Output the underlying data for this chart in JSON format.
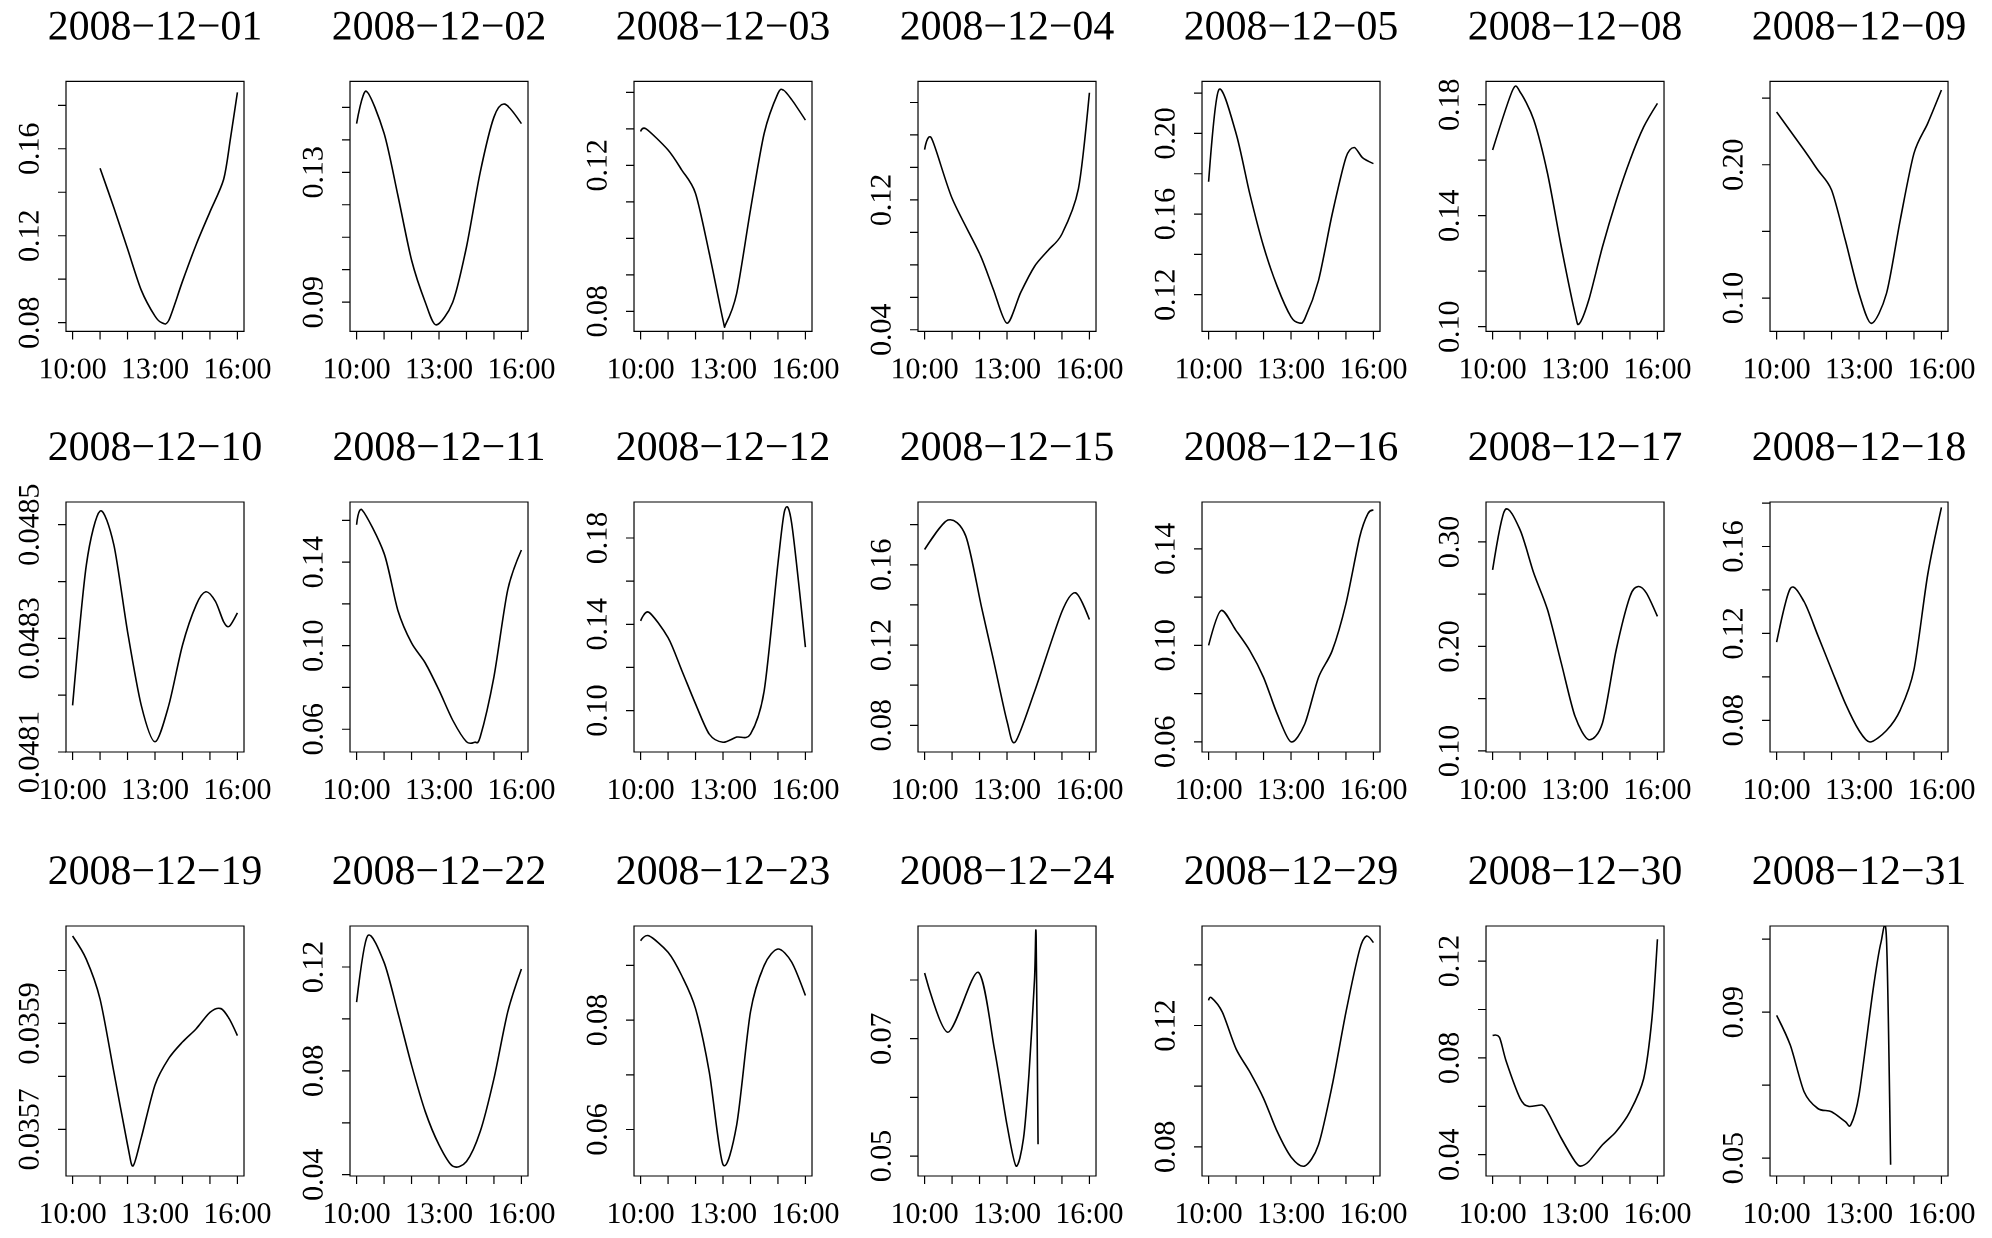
{
  "chart_data": [
    {
      "type": "line",
      "title": "2008−12−01",
      "xlim": [
        9.76,
        16.24
      ],
      "ylim": [
        0.076,
        0.191
      ],
      "xticks": [
        {
          "value": 10,
          "label": "10:00"
        },
        {
          "value": 11,
          "label": null
        },
        {
          "value": 12,
          "label": null
        },
        {
          "value": 13,
          "label": "13:00"
        },
        {
          "value": 14,
          "label": null
        },
        {
          "value": 15,
          "label": null
        },
        {
          "value": 16,
          "label": "16:00"
        }
      ],
      "yticks": [
        0.08,
        {
          "value": 0.1,
          "label": null
        },
        0.12,
        {
          "value": 0.14,
          "label": null
        },
        0.16,
        {
          "value": 0.18,
          "label": null
        }
      ],
      "x": [
        11,
        11.5,
        12,
        12.5,
        13,
        13.25,
        13.5,
        14,
        14.5,
        15,
        15.5,
        15.75,
        16
      ],
      "values": [
        0.151,
        0.133,
        0.114,
        0.095,
        0.083,
        0.08,
        0.081,
        0.099,
        0.116,
        0.131,
        0.146,
        0.165,
        0.186
      ]
    },
    {
      "type": "line",
      "title": "2008−12−02",
      "xlim": [
        9.76,
        16.24
      ],
      "ylim": [
        0.081,
        0.158
      ],
      "xticks": [
        {
          "value": 10,
          "label": "10:00"
        },
        {
          "value": 11,
          "label": null
        },
        {
          "value": 12,
          "label": null
        },
        {
          "value": 13,
          "label": "13:00"
        },
        {
          "value": 14,
          "label": null
        },
        {
          "value": 15,
          "label": null
        },
        {
          "value": 16,
          "label": "16:00"
        }
      ],
      "yticks": [
        0.09,
        {
          "value": 0.1,
          "label": null
        },
        {
          "value": 0.11,
          "label": null
        },
        {
          "value": 0.12,
          "label": null
        },
        0.13,
        {
          "value": 0.14,
          "label": null
        },
        {
          "value": 0.15,
          "label": null
        }
      ],
      "x": [
        10,
        10.35,
        11,
        11.5,
        12,
        12.5,
        12.9,
        13.5,
        14,
        14.5,
        15,
        15.4,
        16
      ],
      "values": [
        0.145,
        0.155,
        0.142,
        0.123,
        0.103,
        0.09,
        0.083,
        0.09,
        0.107,
        0.13,
        0.147,
        0.151,
        0.145
      ]
    },
    {
      "type": "line",
      "title": "2008−12−03",
      "xlim": [
        9.76,
        16.24
      ],
      "ylim": [
        0.0745,
        0.143
      ],
      "xticks": [
        {
          "value": 10,
          "label": "10:00"
        },
        {
          "value": 11,
          "label": null
        },
        {
          "value": 12,
          "label": null
        },
        {
          "value": 13,
          "label": "13:00"
        },
        {
          "value": 14,
          "label": null
        },
        {
          "value": 15,
          "label": null
        },
        {
          "value": 16,
          "label": "16:00"
        }
      ],
      "yticks": [
        0.08,
        {
          "value": 0.09,
          "label": null
        },
        {
          "value": 0.1,
          "label": null
        },
        {
          "value": 0.11,
          "label": null
        },
        0.12,
        {
          "value": 0.13,
          "label": null
        },
        {
          "value": 0.14,
          "label": null
        }
      ],
      "x": [
        10,
        10.2,
        11,
        11.5,
        12,
        12.5,
        13,
        13.1,
        13.5,
        14,
        14.5,
        15,
        15.2,
        15.5,
        16
      ],
      "values": [
        0.1293,
        0.13,
        0.1242,
        0.1187,
        0.1123,
        0.0959,
        0.0776,
        0.0765,
        0.085,
        0.1078,
        0.1288,
        0.1397,
        0.1406,
        0.138,
        0.1324
      ]
    },
    {
      "type": "line",
      "title": "2008−12−04",
      "xlim": [
        9.76,
        16.24
      ],
      "ylim": [
        0.039,
        0.193
      ],
      "xticks": [
        {
          "value": 10,
          "label": "10:00"
        },
        {
          "value": 11,
          "label": null
        },
        {
          "value": 12,
          "label": null
        },
        {
          "value": 13,
          "label": "13:00"
        },
        {
          "value": 14,
          "label": null
        },
        {
          "value": 15,
          "label": null
        },
        {
          "value": 16,
          "label": "16:00"
        }
      ],
      "yticks": [
        0.04,
        {
          "value": 0.06,
          "label": null
        },
        {
          "value": 0.08,
          "label": null
        },
        {
          "value": 0.1,
          "label": null
        },
        0.12,
        {
          "value": 0.14,
          "label": null
        },
        {
          "value": 0.16,
          "label": null
        },
        {
          "value": 0.18,
          "label": null
        }
      ],
      "x": [
        10,
        10.25,
        11,
        12,
        12.5,
        13,
        13.5,
        14,
        14.5,
        15,
        15.6,
        16
      ],
      "values": [
        0.151,
        0.158,
        0.121,
        0.087,
        0.065,
        0.044,
        0.063,
        0.079,
        0.089,
        0.099,
        0.127,
        0.186
      ]
    },
    {
      "type": "line",
      "title": "2008−12−05",
      "xlim": [
        9.76,
        16.24
      ],
      "ylim": [
        0.1018,
        0.2258
      ],
      "xticks": [
        {
          "value": 10,
          "label": "10:00"
        },
        {
          "value": 11,
          "label": null
        },
        {
          "value": 12,
          "label": null
        },
        {
          "value": 13,
          "label": "13:00"
        },
        {
          "value": 14,
          "label": null
        },
        {
          "value": 15,
          "label": null
        },
        {
          "value": 16,
          "label": "16:00"
        }
      ],
      "yticks": [
        0.12,
        {
          "value": 0.14,
          "label": null
        },
        0.16,
        {
          "value": 0.18,
          "label": null
        },
        {
          "value": 0.2,
          "label": "0.20"
        },
        {
          "value": 0.22,
          "label": null
        }
      ],
      "x": [
        10,
        10.37,
        11,
        11.5,
        12,
        12.5,
        13,
        13.3,
        13.5,
        14,
        14.5,
        15,
        15.3,
        15.6,
        16
      ],
      "values": [
        0.176,
        0.2216,
        0.2,
        0.17,
        0.144,
        0.124,
        0.109,
        0.106,
        0.108,
        0.127,
        0.16,
        0.188,
        0.193,
        0.188,
        0.185
      ]
    },
    {
      "type": "line",
      "title": "2008−12−08",
      "xlim": [
        9.76,
        16.24
      ],
      "ylim": [
        0.0983,
        0.1884
      ],
      "xticks": [
        {
          "value": 10,
          "label": "10:00"
        },
        {
          "value": 11,
          "label": null
        },
        {
          "value": 12,
          "label": null
        },
        {
          "value": 13,
          "label": "13:00"
        },
        {
          "value": 14,
          "label": null
        },
        {
          "value": 15,
          "label": null
        },
        {
          "value": 16,
          "label": "16:00"
        }
      ],
      "yticks": [
        {
          "value": 0.1,
          "label": "0.10"
        },
        {
          "value": 0.12,
          "label": null
        },
        0.14,
        {
          "value": 0.16,
          "label": null
        },
        0.18
      ],
      "x": [
        10,
        10.73,
        11,
        11.5,
        12,
        12.5,
        13,
        13.15,
        13.5,
        14,
        14.5,
        15,
        15.5,
        16
      ],
      "values": [
        0.1637,
        0.1853,
        0.1846,
        0.1745,
        0.1552,
        0.1288,
        0.1048,
        0.101,
        0.1096,
        0.1288,
        0.1455,
        0.16,
        0.172,
        0.1805
      ]
    },
    {
      "type": "line",
      "title": "2008−12−09",
      "xlim": [
        9.76,
        16.24
      ],
      "ylim": [
        0.075,
        0.2625
      ],
      "xticks": [
        {
          "value": 10,
          "label": "10:00"
        },
        {
          "value": 11,
          "label": null
        },
        {
          "value": 12,
          "label": null
        },
        {
          "value": 13,
          "label": "13:00"
        },
        {
          "value": 14,
          "label": null
        },
        {
          "value": 15,
          "label": null
        },
        {
          "value": 16,
          "label": "16:00"
        }
      ],
      "yticks": [
        {
          "value": 0.1,
          "label": "0.10"
        },
        {
          "value": 0.15,
          "label": null
        },
        {
          "value": 0.2,
          "label": "0.20"
        },
        {
          "value": 0.25,
          "label": null
        }
      ],
      "x": [
        10,
        11,
        11.5,
        12,
        12.5,
        13,
        13.45,
        14,
        14.5,
        15,
        15.5,
        16
      ],
      "values": [
        0.2395,
        0.211,
        0.196,
        0.181,
        0.1435,
        0.1035,
        0.081,
        0.1035,
        0.1585,
        0.2085,
        0.231,
        0.256
      ]
    },
    {
      "type": "line",
      "title": "2008−12−10",
      "xlim": [
        9.76,
        16.24
      ],
      "ylim": [
        0.0481,
        0.04854
      ],
      "xticks": [
        {
          "value": 10,
          "label": "10:00"
        },
        {
          "value": 11,
          "label": null
        },
        {
          "value": 12,
          "label": null
        },
        {
          "value": 13,
          "label": "13:00"
        },
        {
          "value": 14,
          "label": null
        },
        {
          "value": 15,
          "label": null
        },
        {
          "value": 16,
          "label": "16:00"
        }
      ],
      "yticks": [
        0.0481,
        {
          "value": 0.0482,
          "label": null
        },
        0.0483,
        {
          "value": 0.0484,
          "label": null
        },
        0.0485
      ],
      "x": [
        10,
        10.5,
        11,
        11.5,
        12,
        12.5,
        13,
        13.5,
        14,
        14.5,
        14.85,
        15.2,
        15.5,
        15.7,
        16
      ],
      "values": [
        0.048182,
        0.048429,
        0.048524,
        0.048465,
        0.048312,
        0.048182,
        0.048118,
        0.048182,
        0.048288,
        0.048359,
        0.048382,
        0.048365,
        0.048329,
        0.048321,
        0.048345
      ]
    },
    {
      "type": "line",
      "title": "2008−12−11",
      "xlim": [
        9.76,
        16.24
      ],
      "ylim": [
        0.0491,
        0.1688
      ],
      "xticks": [
        {
          "value": 10,
          "label": "10:00"
        },
        {
          "value": 11,
          "label": null
        },
        {
          "value": 12,
          "label": null
        },
        {
          "value": 13,
          "label": "13:00"
        },
        {
          "value": 14,
          "label": null
        },
        {
          "value": 15,
          "label": null
        },
        {
          "value": 16,
          "label": "16:00"
        }
      ],
      "yticks": [
        0.06,
        {
          "value": 0.08,
          "label": null
        },
        {
          "value": 0.1,
          "label": "0.10"
        },
        {
          "value": 0.12,
          "label": null
        },
        0.14,
        {
          "value": 0.16,
          "label": null
        }
      ],
      "x": [
        10,
        10.2,
        11,
        11.5,
        12,
        12.5,
        13,
        13.5,
        14,
        14.3,
        14.5,
        15,
        15.5,
        16
      ],
      "values": [
        0.1579,
        0.165,
        0.1442,
        0.117,
        0.1013,
        0.0917,
        0.0787,
        0.0643,
        0.054,
        0.0538,
        0.0563,
        0.0851,
        0.1266,
        0.1458
      ]
    },
    {
      "type": "line",
      "title": "2008−12−12",
      "xlim": [
        9.76,
        16.24
      ],
      "ylim": [
        0.0808,
        0.1967
      ],
      "xticks": [
        {
          "value": 10,
          "label": "10:00"
        },
        {
          "value": 11,
          "label": null
        },
        {
          "value": 12,
          "label": null
        },
        {
          "value": 13,
          "label": "13:00"
        },
        {
          "value": 14,
          "label": null
        },
        {
          "value": 15,
          "label": null
        },
        {
          "value": 16,
          "label": "16:00"
        }
      ],
      "yticks": [
        {
          "value": 0.1,
          "label": "0.10"
        },
        {
          "value": 0.12,
          "label": null
        },
        0.14,
        {
          "value": 0.16,
          "label": null
        },
        0.18
      ],
      "x": [
        10,
        10.3,
        11,
        11.5,
        12,
        12.5,
        13,
        13.5,
        14,
        14.5,
        15,
        15.25,
        15.5,
        16
      ],
      "values": [
        0.1416,
        0.1456,
        0.1338,
        0.1186,
        0.1031,
        0.0891,
        0.0853,
        0.0877,
        0.0891,
        0.1093,
        0.1682,
        0.193,
        0.1868,
        0.1294
      ]
    },
    {
      "type": "line",
      "title": "2008−12−15",
      "xlim": [
        9.76,
        16.24
      ],
      "ylim": [
        0.0667,
        0.1913
      ],
      "xticks": [
        {
          "value": 10,
          "label": "10:00"
        },
        {
          "value": 11,
          "label": null
        },
        {
          "value": 12,
          "label": null
        },
        {
          "value": 13,
          "label": "13:00"
        },
        {
          "value": 14,
          "label": null
        },
        {
          "value": 15,
          "label": null
        },
        {
          "value": 16,
          "label": "16:00"
        }
      ],
      "yticks": [
        0.08,
        {
          "value": 0.1,
          "label": null
        },
        0.12,
        {
          "value": 0.14,
          "label": null
        },
        0.16,
        {
          "value": 0.18,
          "label": null
        }
      ],
      "x": [
        10,
        10.85,
        11.5,
        12.07,
        12.5,
        13,
        13.3,
        14,
        15,
        15.5,
        16
      ],
      "values": [
        0.1676,
        0.1823,
        0.1743,
        0.139,
        0.113,
        0.082,
        0.0717,
        0.0967,
        0.1367,
        0.146,
        0.1327
      ]
    },
    {
      "type": "line",
      "title": "2008−12−16",
      "xlim": [
        9.76,
        16.24
      ],
      "ylim": [
        0.0558,
        0.1594
      ],
      "xticks": [
        {
          "value": 10,
          "label": "10:00"
        },
        {
          "value": 11,
          "label": null
        },
        {
          "value": 12,
          "label": null
        },
        {
          "value": 13,
          "label": "13:00"
        },
        {
          "value": 14,
          "label": null
        },
        {
          "value": 15,
          "label": null
        },
        {
          "value": 16,
          "label": "16:00"
        }
      ],
      "yticks": [
        0.06,
        {
          "value": 0.08,
          "label": null
        },
        {
          "value": 0.1,
          "label": "0.10"
        },
        {
          "value": 0.12,
          "label": null
        },
        0.14
      ],
      "x": [
        10,
        10.45,
        11,
        11.5,
        12,
        12.5,
        13,
        13.5,
        14,
        14.5,
        15,
        15.5,
        15.8,
        16
      ],
      "values": [
        0.1,
        0.1144,
        0.1061,
        0.0978,
        0.0867,
        0.0715,
        0.06,
        0.0674,
        0.0867,
        0.0978,
        0.1173,
        0.1449,
        0.1546,
        0.156
      ]
    },
    {
      "type": "line",
      "title": "2008−12−17",
      "xlim": [
        9.76,
        16.24
      ],
      "ylim": [
        0.099,
        0.3382
      ],
      "xticks": [
        {
          "value": 10,
          "label": "10:00"
        },
        {
          "value": 11,
          "label": null
        },
        {
          "value": 12,
          "label": null
        },
        {
          "value": 13,
          "label": "13:00"
        },
        {
          "value": 14,
          "label": null
        },
        {
          "value": 15,
          "label": null
        },
        {
          "value": 16,
          "label": "16:00"
        }
      ],
      "yticks": [
        {
          "value": 0.1,
          "label": "0.10"
        },
        {
          "value": 0.15,
          "label": null
        },
        {
          "value": 0.2,
          "label": "0.20"
        },
        {
          "value": 0.25,
          "label": null
        },
        {
          "value": 0.3,
          "label": "0.30"
        }
      ],
      "x": [
        10,
        10.45,
        11,
        11.5,
        12,
        12.5,
        13,
        13.5,
        14,
        14.5,
        15,
        15.3,
        15.6,
        16
      ],
      "values": [
        0.2732,
        0.3306,
        0.3115,
        0.27,
        0.235,
        0.184,
        0.1331,
        0.1108,
        0.1268,
        0.1968,
        0.2478,
        0.2573,
        0.251,
        0.2287
      ]
    },
    {
      "type": "line",
      "title": "2008−12−18",
      "xlim": [
        9.76,
        16.24
      ],
      "ylim": [
        0.0654,
        0.1805
      ],
      "xticks": [
        {
          "value": 10,
          "label": "10:00"
        },
        {
          "value": 11,
          "label": null
        },
        {
          "value": 12,
          "label": null
        },
        {
          "value": 13,
          "label": "13:00"
        },
        {
          "value": 14,
          "label": null
        },
        {
          "value": 15,
          "label": null
        },
        {
          "value": 16,
          "label": "16:00"
        }
      ],
      "yticks": [
        0.08,
        {
          "value": 0.1,
          "label": null
        },
        0.12,
        {
          "value": 0.14,
          "label": null
        },
        0.16,
        {
          "value": 0.18,
          "label": null
        }
      ],
      "x": [
        10,
        10.5,
        11,
        11.5,
        12,
        12.5,
        13,
        13.4,
        14,
        14.5,
        15,
        15.5,
        16
      ],
      "values": [
        0.116,
        0.1407,
        0.1346,
        0.1191,
        0.1033,
        0.0878,
        0.0753,
        0.07,
        0.0753,
        0.0847,
        0.1033,
        0.147,
        0.178
      ]
    },
    {
      "type": "line",
      "title": "2008−12−19",
      "xlim": [
        9.76,
        16.24
      ],
      "ylim": [
        0.035612,
        0.036084
      ],
      "xticks": [
        {
          "value": 10,
          "label": "10:00"
        },
        {
          "value": 11,
          "label": null
        },
        {
          "value": 12,
          "label": null
        },
        {
          "value": 13,
          "label": "13:00"
        },
        {
          "value": 14,
          "label": null
        },
        {
          "value": 15,
          "label": null
        },
        {
          "value": 16,
          "label": "16:00"
        }
      ],
      "yticks": [
        0.0357,
        {
          "value": 0.0358,
          "label": null
        },
        0.0359,
        {
          "value": 0.036,
          "label": null
        }
      ],
      "x": [
        10,
        10.5,
        11,
        11.5,
        12,
        12.2,
        12.5,
        13,
        13.5,
        14,
        14.5,
        15,
        15.4,
        15.7,
        16
      ],
      "values": [
        0.036065,
        0.036021,
        0.035946,
        0.035809,
        0.035671,
        0.035631,
        0.035684,
        0.035784,
        0.035834,
        0.035865,
        0.03589,
        0.035921,
        0.035928,
        0.035909,
        0.035877
      ]
    },
    {
      "type": "line",
      "title": "2008−12−22",
      "xlim": [
        9.76,
        16.24
      ],
      "ylim": [
        0.0395,
        0.1358
      ],
      "xticks": [
        {
          "value": 10,
          "label": "10:00"
        },
        {
          "value": 11,
          "label": null
        },
        {
          "value": 12,
          "label": null
        },
        {
          "value": 13,
          "label": "13:00"
        },
        {
          "value": 14,
          "label": null
        },
        {
          "value": 15,
          "label": null
        },
        {
          "value": 16,
          "label": "16:00"
        }
      ],
      "yticks": [
        0.04,
        {
          "value": 0.06,
          "label": null
        },
        0.08,
        {
          "value": 0.1,
          "label": null
        },
        0.12
      ],
      "x": [
        10,
        10.4,
        11,
        11.5,
        12,
        12.5,
        13,
        13.5,
        14,
        14.5,
        15,
        15.5,
        16
      ],
      "values": [
        0.1065,
        0.132,
        0.1218,
        0.1026,
        0.0822,
        0.0643,
        0.0515,
        0.0433,
        0.0451,
        0.0566,
        0.077,
        0.1026,
        0.1192
      ]
    },
    {
      "type": "line",
      "title": "2008−12−23",
      "xlim": [
        9.76,
        16.24
      ],
      "ylim": [
        0.0515,
        0.0972
      ],
      "xticks": [
        {
          "value": 10,
          "label": "10:00"
        },
        {
          "value": 11,
          "label": null
        },
        {
          "value": 12,
          "label": null
        },
        {
          "value": 13,
          "label": "13:00"
        },
        {
          "value": 14,
          "label": null
        },
        {
          "value": 15,
          "label": null
        },
        {
          "value": 16,
          "label": "16:00"
        }
      ],
      "yticks": [
        0.06,
        {
          "value": 0.07,
          "label": null
        },
        0.08,
        {
          "value": 0.09,
          "label": null
        }
      ],
      "x": [
        10,
        10.3,
        11,
        11.5,
        12,
        12.5,
        13,
        13.5,
        14,
        14.5,
        15,
        15.5,
        16
      ],
      "values": [
        0.0945,
        0.0954,
        0.0924,
        0.0881,
        0.0821,
        0.0705,
        0.0536,
        0.0609,
        0.0815,
        0.09,
        0.093,
        0.0906,
        0.0845
      ]
    },
    {
      "type": "line",
      "title": "2008−12−24",
      "xlim": [
        9.76,
        16.24
      ],
      "ylim": [
        0.0466,
        0.0892
      ],
      "xticks": [
        {
          "value": 10,
          "label": "10:00"
        },
        {
          "value": 11,
          "label": null
        },
        {
          "value": 12,
          "label": null
        },
        {
          "value": 13,
          "label": "13:00"
        },
        {
          "value": 14,
          "label": null
        },
        {
          "value": 15,
          "label": null
        },
        {
          "value": 16,
          "label": "16:00"
        }
      ],
      "yticks": [
        0.05,
        {
          "value": 0.06,
          "label": null
        },
        0.07,
        {
          "value": 0.08,
          "label": null
        }
      ],
      "x": [
        10,
        10.85,
        11.95,
        12.55,
        13,
        13.33,
        13.6,
        13.8,
        14,
        14.06,
        14.13
      ],
      "values": [
        0.0812,
        0.0711,
        0.0813,
        0.068,
        0.0553,
        0.0483,
        0.053,
        0.064,
        0.08,
        0.0875,
        0.052
      ]
    },
    {
      "type": "line",
      "title": "2008−12−29",
      "xlim": [
        9.76,
        16.24
      ],
      "ylim": [
        0.0704,
        0.1528
      ],
      "xticks": [
        {
          "value": 10,
          "label": "10:00"
        },
        {
          "value": 11,
          "label": null
        },
        {
          "value": 12,
          "label": null
        },
        {
          "value": 13,
          "label": "13:00"
        },
        {
          "value": 14,
          "label": null
        },
        {
          "value": 15,
          "label": null
        },
        {
          "value": 16,
          "label": "16:00"
        }
      ],
      "yticks": [
        0.08,
        {
          "value": 0.1,
          "label": null
        },
        0.12,
        {
          "value": 0.14,
          "label": null
        }
      ],
      "x": [
        10,
        10.1,
        10.5,
        11,
        11.5,
        12,
        12.5,
        13,
        13.5,
        14,
        14.5,
        15,
        15.5,
        15.75,
        16
      ],
      "values": [
        0.1283,
        0.1292,
        0.1244,
        0.1123,
        0.1047,
        0.096,
        0.085,
        0.0767,
        0.0737,
        0.0807,
        0.1003,
        0.1244,
        0.1451,
        0.1495,
        0.1473
      ]
    },
    {
      "type": "line",
      "title": "2008−12−30",
      "xlim": [
        9.76,
        16.24
      ],
      "ylim": [
        0.0312,
        0.1345
      ],
      "xticks": [
        {
          "value": 10,
          "label": "10:00"
        },
        {
          "value": 11,
          "label": null
        },
        {
          "value": 12,
          "label": null
        },
        {
          "value": 13,
          "label": "13:00"
        },
        {
          "value": 14,
          "label": null
        },
        {
          "value": 15,
          "label": null
        },
        {
          "value": 16,
          "label": "16:00"
        }
      ],
      "yticks": [
        0.04,
        {
          "value": 0.06,
          "label": null
        },
        0.08,
        {
          "value": 0.1,
          "label": null
        },
        0.12
      ],
      "x": [
        10,
        10.25,
        10.5,
        11,
        11.3,
        11.8,
        12,
        12.5,
        13,
        13.2,
        13.5,
        14,
        14.5,
        15,
        15.5,
        15.8,
        16
      ],
      "values": [
        0.0893,
        0.0885,
        0.0784,
        0.0633,
        0.06,
        0.0605,
        0.0578,
        0.0468,
        0.0372,
        0.0353,
        0.0372,
        0.0441,
        0.0496,
        0.0578,
        0.0715,
        0.0962,
        0.129
      ]
    },
    {
      "type": "line",
      "title": "2008−12−31",
      "xlim": [
        9.76,
        16.24
      ],
      "ylim": [
        0.0451,
        0.1136
      ],
      "xticks": [
        {
          "value": 10,
          "label": "10:00"
        },
        {
          "value": 11,
          "label": null
        },
        {
          "value": 12,
          "label": null
        },
        {
          "value": 13,
          "label": "13:00"
        },
        {
          "value": 14,
          "label": null
        },
        {
          "value": 15,
          "label": null
        },
        {
          "value": 16,
          "label": "16:00"
        }
      ],
      "yticks": [
        0.05,
        {
          "value": 0.07,
          "label": null
        },
        0.09,
        {
          "value": 0.11,
          "label": null
        }
      ],
      "x": [
        10,
        10.5,
        11,
        11.5,
        12,
        12.5,
        12.7,
        13,
        13.5,
        13.8,
        14,
        14.15
      ],
      "values": [
        0.0891,
        0.0809,
        0.0682,
        0.0636,
        0.0627,
        0.06,
        0.0591,
        0.0673,
        0.0955,
        0.1091,
        0.11,
        0.0482
      ]
    }
  ]
}
